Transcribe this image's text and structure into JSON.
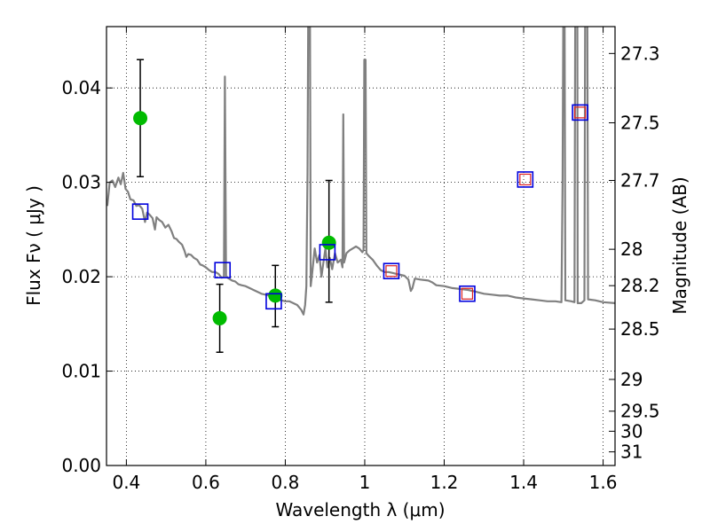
{
  "chart_data": {
    "type": "scatter",
    "xlabel": "Wavelength  λ (μm)",
    "ylabel": "Flux  Fν ( μJy )",
    "ylabel2": "Magnitude (AB)",
    "xlim": [
      0.35,
      1.63
    ],
    "ylim": [
      0.0,
      0.0465
    ],
    "grid": true,
    "x_ticks": [
      0.4,
      0.6,
      0.8,
      1.0,
      1.2,
      1.4,
      1.6
    ],
    "x_tick_labels": [
      "0.4",
      "0.6",
      "0.8",
      "1",
      "1.2",
      "1.4",
      "1.6"
    ],
    "y_ticks": [
      0.0,
      0.01,
      0.02,
      0.03,
      0.04
    ],
    "y_tick_labels": [
      "0.00",
      "0.01",
      "0.02",
      "0.03",
      "0.04"
    ],
    "mag_ticks": [
      27.3,
      27.5,
      27.7,
      28,
      28.2,
      28.5,
      29,
      29.5,
      30,
      31
    ],
    "mag_tick_labels": [
      "27.3",
      "27.5",
      "27.7",
      "28",
      "28.2",
      "28.5",
      "29",
      "29.5",
      "30",
      "31"
    ],
    "series": [
      {
        "kind": "line",
        "color": "#808080",
        "points": [
          [
            0.352,
            0.0275
          ],
          [
            0.358,
            0.03
          ],
          [
            0.365,
            0.0302
          ],
          [
            0.372,
            0.0295
          ],
          [
            0.38,
            0.0305
          ],
          [
            0.386,
            0.0298
          ],
          [
            0.392,
            0.031
          ],
          [
            0.398,
            0.0293
          ],
          [
            0.404,
            0.029
          ],
          [
            0.41,
            0.0282
          ],
          [
            0.418,
            0.0281
          ],
          [
            0.425,
            0.0275
          ],
          [
            0.432,
            0.0276
          ],
          [
            0.44,
            0.0272
          ],
          [
            0.447,
            0.0258
          ],
          [
            0.452,
            0.0268
          ],
          [
            0.458,
            0.0266
          ],
          [
            0.466,
            0.0262
          ],
          [
            0.472,
            0.025
          ],
          [
            0.476,
            0.0263
          ],
          [
            0.483,
            0.026
          ],
          [
            0.49,
            0.0258
          ],
          [
            0.498,
            0.0252
          ],
          [
            0.506,
            0.0255
          ],
          [
            0.514,
            0.0248
          ],
          [
            0.52,
            0.0241
          ],
          [
            0.526,
            0.024
          ],
          [
            0.532,
            0.0237
          ],
          [
            0.54,
            0.0234
          ],
          [
            0.546,
            0.0228
          ],
          [
            0.551,
            0.0221
          ],
          [
            0.556,
            0.0224
          ],
          [
            0.563,
            0.0223
          ],
          [
            0.57,
            0.022
          ],
          [
            0.578,
            0.0218
          ],
          [
            0.586,
            0.0213
          ],
          [
            0.592,
            0.0212
          ],
          [
            0.6,
            0.021
          ],
          [
            0.608,
            0.0207
          ],
          [
            0.616,
            0.0205
          ],
          [
            0.624,
            0.0205
          ],
          [
            0.632,
            0.0203
          ],
          [
            0.64,
            0.0199
          ],
          [
            0.6455,
            0.02
          ],
          [
            0.648,
            0.0412
          ],
          [
            0.651,
            0.02
          ],
          [
            0.658,
            0.0198
          ],
          [
            0.666,
            0.0196
          ],
          [
            0.674,
            0.0195
          ],
          [
            0.682,
            0.0192
          ],
          [
            0.69,
            0.0191
          ],
          [
            0.7,
            0.019
          ],
          [
            0.71,
            0.0188
          ],
          [
            0.72,
            0.0186
          ],
          [
            0.73,
            0.0184
          ],
          [
            0.74,
            0.0182
          ],
          [
            0.75,
            0.0181
          ],
          [
            0.76,
            0.018
          ],
          [
            0.77,
            0.0179
          ],
          [
            0.78,
            0.0176
          ],
          [
            0.79,
            0.0175
          ],
          [
            0.8,
            0.0174
          ],
          [
            0.81,
            0.0174
          ],
          [
            0.82,
            0.0172
          ],
          [
            0.83,
            0.017
          ],
          [
            0.84,
            0.0165
          ],
          [
            0.846,
            0.016
          ],
          [
            0.85,
            0.017
          ],
          [
            0.853,
            0.019
          ],
          [
            0.856,
            0.031
          ],
          [
            0.858,
            0.05
          ],
          [
            0.862,
            0.05
          ],
          [
            0.864,
            0.019
          ],
          [
            0.868,
            0.0205
          ],
          [
            0.874,
            0.023
          ],
          [
            0.88,
            0.0215
          ],
          [
            0.886,
            0.0223
          ],
          [
            0.891,
            0.02
          ],
          [
            0.896,
            0.0215
          ],
          [
            0.901,
            0.023
          ],
          [
            0.906,
            0.021
          ],
          [
            0.912,
            0.022
          ],
          [
            0.918,
            0.0208
          ],
          [
            0.925,
            0.0225
          ],
          [
            0.932,
            0.0215
          ],
          [
            0.94,
            0.0218
          ],
          [
            0.944,
            0.021
          ],
          [
            0.946,
            0.0372
          ],
          [
            0.948,
            0.0215
          ],
          [
            0.954,
            0.0225
          ],
          [
            0.962,
            0.0228
          ],
          [
            0.97,
            0.023
          ],
          [
            0.978,
            0.0232
          ],
          [
            0.986,
            0.023
          ],
          [
            0.994,
            0.0226
          ],
          [
            0.997,
            0.0228
          ],
          [
            0.999,
            0.043
          ],
          [
            1.002,
            0.043
          ],
          [
            1.004,
            0.0225
          ],
          [
            1.01,
            0.0222
          ],
          [
            1.02,
            0.0218
          ],
          [
            1.03,
            0.0212
          ],
          [
            1.04,
            0.0207
          ],
          [
            1.05,
            0.0205
          ],
          [
            1.06,
            0.0205
          ],
          [
            1.07,
            0.0204
          ],
          [
            1.08,
            0.0203
          ],
          [
            1.09,
            0.0202
          ],
          [
            1.1,
            0.0201
          ],
          [
            1.11,
            0.0197
          ],
          [
            1.116,
            0.0185
          ],
          [
            1.12,
            0.0188
          ],
          [
            1.126,
            0.0198
          ],
          [
            1.14,
            0.0197
          ],
          [
            1.16,
            0.0196
          ],
          [
            1.17,
            0.0194
          ],
          [
            1.18,
            0.0191
          ],
          [
            1.2,
            0.019
          ],
          [
            1.22,
            0.0188
          ],
          [
            1.24,
            0.0187
          ],
          [
            1.26,
            0.0186
          ],
          [
            1.28,
            0.0184
          ],
          [
            1.3,
            0.0182
          ],
          [
            1.32,
            0.0181
          ],
          [
            1.34,
            0.018
          ],
          [
            1.36,
            0.018
          ],
          [
            1.38,
            0.0178
          ],
          [
            1.4,
            0.0177
          ],
          [
            1.42,
            0.0176
          ],
          [
            1.44,
            0.0175
          ],
          [
            1.46,
            0.0174
          ],
          [
            1.48,
            0.0174
          ],
          [
            1.495,
            0.0173
          ],
          [
            1.498,
            0.03
          ],
          [
            1.5,
            0.05
          ],
          [
            1.503,
            0.05
          ],
          [
            1.505,
            0.0175
          ],
          [
            1.52,
            0.0174
          ],
          [
            1.528,
            0.0173
          ],
          [
            1.53,
            0.05
          ],
          [
            1.535,
            0.05
          ],
          [
            1.536,
            0.0172
          ],
          [
            1.545,
            0.0172
          ],
          [
            1.553,
            0.0175
          ],
          [
            1.555,
            0.05
          ],
          [
            1.56,
            0.05
          ],
          [
            1.562,
            0.0176
          ],
          [
            1.58,
            0.0175
          ],
          [
            1.6,
            0.0173
          ],
          [
            1.63,
            0.0172
          ]
        ]
      },
      {
        "kind": "errorbar",
        "color": "#00bb00",
        "points": [
          {
            "x": 0.435,
            "y": 0.0368,
            "ylo": 0.0306,
            "yhi": 0.043
          },
          {
            "x": 0.635,
            "y": 0.0156,
            "ylo": 0.012,
            "yhi": 0.0192
          },
          {
            "x": 0.775,
            "y": 0.018,
            "ylo": 0.0147,
            "yhi": 0.0212
          },
          {
            "x": 0.91,
            "y": 0.0236,
            "ylo": 0.0173,
            "yhi": 0.0302
          }
        ]
      },
      {
        "kind": "blue-squares",
        "color": "#0000dd",
        "points": [
          [
            0.435,
            0.0269
          ],
          [
            0.642,
            0.0207
          ],
          [
            0.771,
            0.0174
          ],
          [
            0.906,
            0.0226
          ],
          [
            1.067,
            0.0206
          ],
          [
            1.258,
            0.0182
          ],
          [
            1.404,
            0.0303
          ],
          [
            1.542,
            0.0374
          ]
        ]
      },
      {
        "kind": "red-squares",
        "color": "#dd2222",
        "points": [
          [
            1.067,
            0.0206
          ],
          [
            1.258,
            0.0182
          ],
          [
            1.404,
            0.0303
          ],
          [
            1.542,
            0.0374
          ]
        ]
      }
    ]
  }
}
